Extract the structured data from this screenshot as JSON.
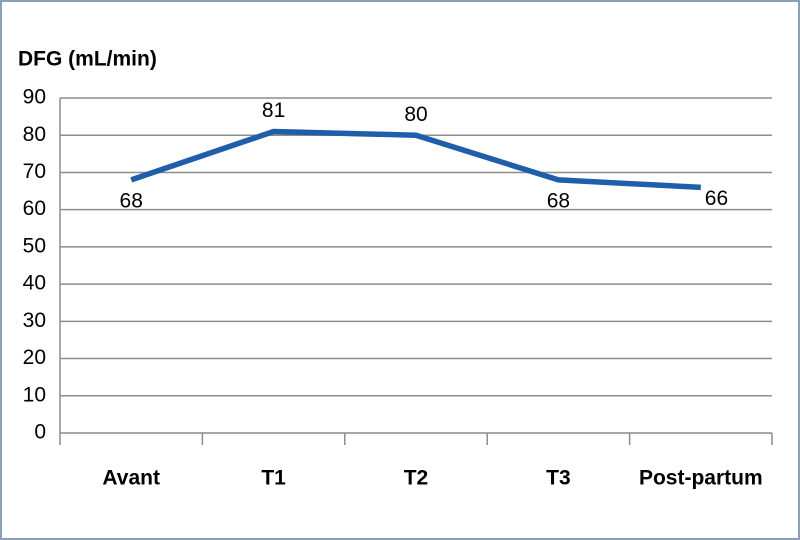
{
  "chart_data": {
    "type": "line",
    "y_label": "DFG (mL/min)",
    "categories": [
      "Avant",
      "T1",
      "T2",
      "T3",
      "Post-partum"
    ],
    "series": [
      {
        "name": "DFG",
        "color": "#1f5ea8",
        "values": [
          68,
          81,
          80,
          68,
          66
        ]
      }
    ],
    "ylim": [
      0,
      90
    ],
    "yticks": [
      0,
      10,
      20,
      30,
      40,
      50,
      60,
      70,
      80,
      90
    ],
    "grid": true
  }
}
